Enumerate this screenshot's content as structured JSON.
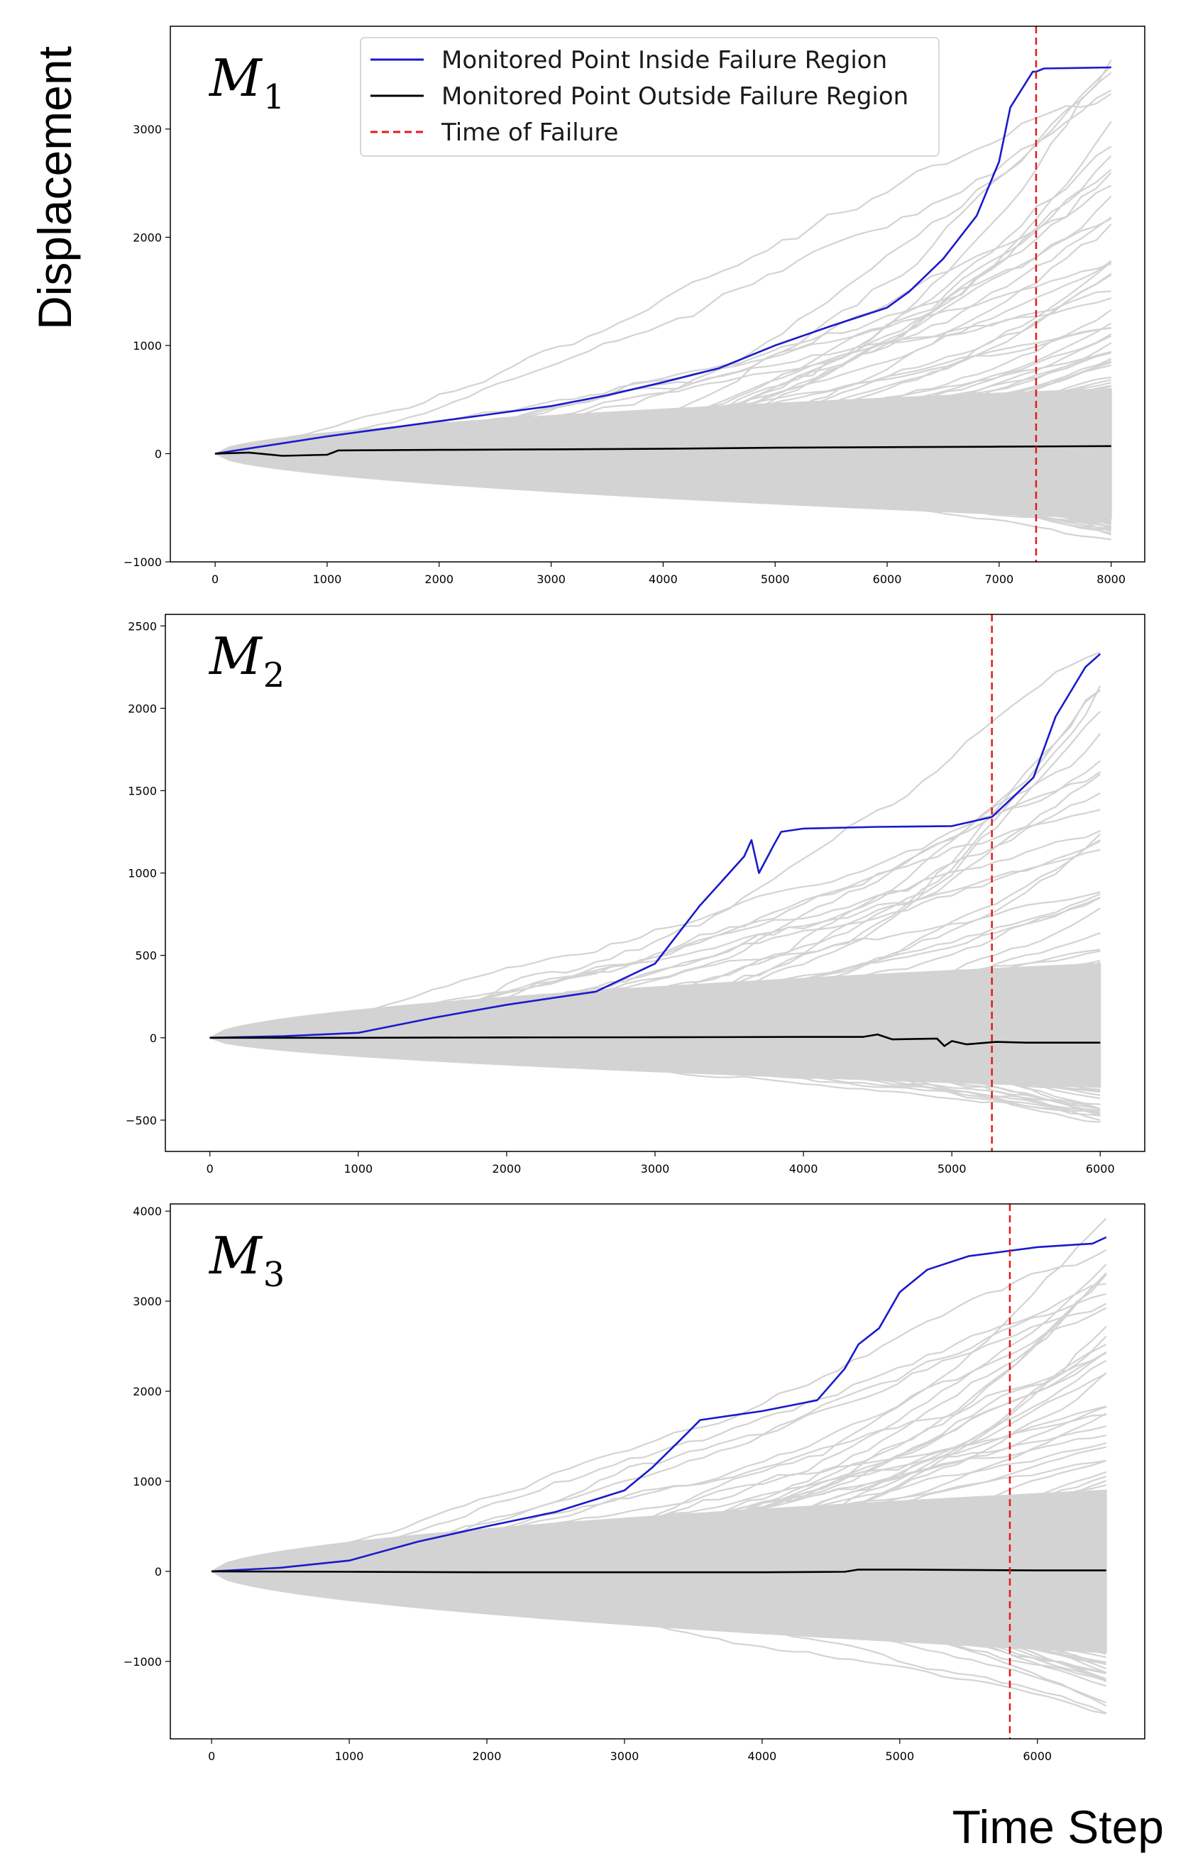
{
  "figure": {
    "ylabel": "Displacement",
    "xlabel": "Time Step"
  },
  "legend": {
    "location": "top-center of first panel",
    "entries": [
      {
        "label": "Monitored Point Inside Failure Region",
        "color": "#1a1acc",
        "style": "solid"
      },
      {
        "label": "Monitored Point Outside Failure Region",
        "color": "#000000",
        "style": "solid"
      },
      {
        "label": "Time of Failure",
        "color": "#e31a1c",
        "style": "dashed"
      }
    ]
  },
  "colors": {
    "inside": "#1a1acc",
    "outside": "#000000",
    "failure": "#e31a1c",
    "ensemble": "#d3d3d3"
  },
  "chart_data": [
    {
      "type": "line",
      "panel_label": "M",
      "panel_sub": "1",
      "xlim": [
        -400,
        8300
      ],
      "ylim": [
        -1000,
        3950
      ],
      "xticks": [
        0,
        1000,
        2000,
        3000,
        4000,
        5000,
        6000,
        7000,
        8000
      ],
      "yticks": [
        -1000,
        0,
        1000,
        2000,
        3000
      ],
      "failure_time": 7330,
      "ensemble": {
        "upper": 3750,
        "lower": -780,
        "core_upper": 600,
        "core_lower": -600,
        "x_end": 8000
      },
      "series": [
        {
          "name": "Monitored Point Inside Failure Region",
          "x": [
            0,
            500,
            1000,
            1500,
            2000,
            2500,
            3000,
            3500,
            4000,
            4500,
            5000,
            5500,
            6000,
            6200,
            6500,
            6800,
            7000,
            7100,
            7300,
            7330,
            7400,
            8000
          ],
          "y": [
            0,
            80,
            160,
            230,
            300,
            370,
            440,
            540,
            660,
            790,
            1000,
            1180,
            1350,
            1500,
            1800,
            2200,
            2700,
            3200,
            3530,
            3530,
            3560,
            3570
          ]
        },
        {
          "name": "Monitored Point Outside Failure Region",
          "x": [
            0,
            300,
            600,
            1000,
            1100,
            2000,
            3000,
            4000,
            5000,
            6000,
            7000,
            8000
          ],
          "y": [
            0,
            10,
            -20,
            -10,
            30,
            35,
            40,
            45,
            55,
            60,
            65,
            70
          ]
        }
      ]
    },
    {
      "type": "line",
      "panel_label": "M",
      "panel_sub": "2",
      "xlim": [
        -300,
        6300
      ],
      "ylim": [
        -690,
        2570
      ],
      "xticks": [
        0,
        1000,
        2000,
        3000,
        4000,
        5000,
        6000
      ],
      "yticks": [
        -500,
        0,
        500,
        1000,
        1500,
        2000,
        2500
      ],
      "failure_time": 5270,
      "ensemble": {
        "upper": 2480,
        "lower": -530,
        "core_upper": 450,
        "core_lower": -300,
        "x_end": 6000
      },
      "series": [
        {
          "name": "Monitored Point Inside Failure Region",
          "x": [
            0,
            500,
            1000,
            1500,
            2000,
            2600,
            3000,
            3300,
            3600,
            3650,
            3700,
            3800,
            3850,
            4000,
            4500,
            5000,
            5270,
            5400,
            5550,
            5700,
            5900,
            6000
          ],
          "y": [
            0,
            10,
            30,
            120,
            200,
            280,
            450,
            800,
            1100,
            1200,
            1000,
            1170,
            1250,
            1270,
            1280,
            1285,
            1340,
            1450,
            1580,
            1950,
            2250,
            2330
          ]
        },
        {
          "name": "Monitored Point Outside Failure Region",
          "x": [
            0,
            1000,
            2000,
            3000,
            4000,
            4400,
            4500,
            4600,
            4900,
            4950,
            5000,
            5100,
            5300,
            5500,
            6000
          ],
          "y": [
            0,
            0,
            2,
            3,
            5,
            5,
            20,
            -10,
            -5,
            -50,
            -20,
            -40,
            -25,
            -30,
            -30
          ]
        }
      ]
    },
    {
      "type": "line",
      "panel_label": "M",
      "panel_sub": "3",
      "xlim": [
        -300,
        6780
      ],
      "ylim": [
        -1860,
        4080
      ],
      "xticks": [
        0,
        1000,
        2000,
        3000,
        4000,
        5000,
        6000
      ],
      "yticks": [
        -1000,
        0,
        1000,
        2000,
        3000,
        4000
      ],
      "failure_time": 5800,
      "ensemble": {
        "upper": 3800,
        "lower": -1600,
        "core_upper": 900,
        "core_lower": -900,
        "x_end": 6500
      },
      "series": [
        {
          "name": "Monitored Point Inside Failure Region",
          "x": [
            0,
            500,
            1000,
            1500,
            2000,
            2500,
            3000,
            3200,
            3400,
            3550,
            4000,
            4400,
            4600,
            4700,
            4850,
            5000,
            5200,
            5500,
            5800,
            6000,
            6400,
            6500
          ],
          "y": [
            0,
            40,
            120,
            330,
            500,
            660,
            900,
            1150,
            1450,
            1680,
            1780,
            1900,
            2250,
            2520,
            2700,
            3100,
            3350,
            3500,
            3560,
            3600,
            3640,
            3710
          ]
        },
        {
          "name": "Monitored Point Outside Failure Region",
          "x": [
            0,
            1000,
            2000,
            3000,
            4000,
            4600,
            4700,
            5000,
            6000,
            6500
          ],
          "y": [
            0,
            -5,
            -10,
            -10,
            -10,
            -5,
            20,
            20,
            10,
            10
          ]
        }
      ]
    }
  ]
}
